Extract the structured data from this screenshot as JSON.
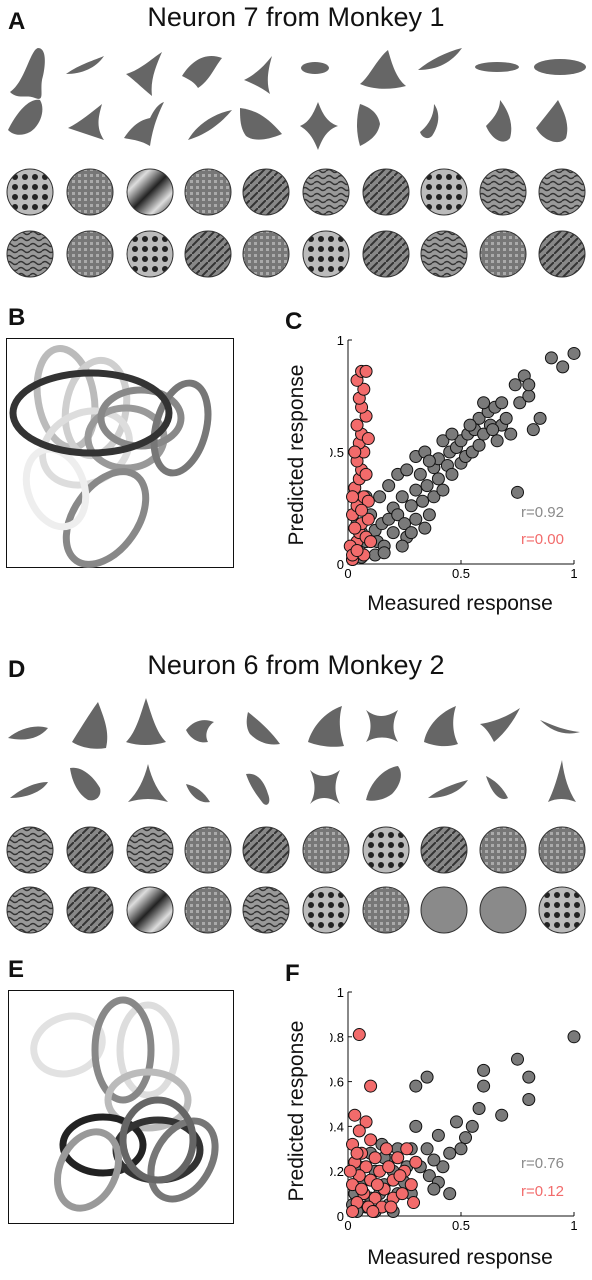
{
  "panels": {
    "A": "A",
    "B": "B",
    "C": "C",
    "D": "D",
    "E": "E",
    "F": "F"
  },
  "titles": {
    "top": "Neuron 7 from Monkey 1",
    "bottom": "Neuron 6 from Monkey 2"
  },
  "colors": {
    "shape": "#666666",
    "gray_series": "#7a7a7a",
    "red_series": "#f26b6b",
    "gray_text": "#8a8a8a",
    "red_text": "#f26b6b"
  },
  "chart_data": [
    {
      "type": "scatter",
      "panel": "C",
      "xlabel": "Measured response",
      "ylabel": "Predicted response",
      "xlim": [
        0,
        1
      ],
      "ylim": [
        0,
        1
      ],
      "xticks": [
        "0",
        "0.5",
        "1"
      ],
      "yticks": [
        "0",
        "0.5",
        "1"
      ],
      "series": [
        {
          "name": "r=0.92",
          "color": "#7a7a7a",
          "points": [
            [
              0.02,
              0.02
            ],
            [
              0.03,
              0.05
            ],
            [
              0.05,
              0.08
            ],
            [
              0.06,
              0.03
            ],
            [
              0.08,
              0.1
            ],
            [
              0.1,
              0.12
            ],
            [
              0.12,
              0.15
            ],
            [
              0.13,
              0.1
            ],
            [
              0.15,
              0.18
            ],
            [
              0.16,
              0.08
            ],
            [
              0.18,
              0.2
            ],
            [
              0.2,
              0.14
            ],
            [
              0.2,
              0.25
            ],
            [
              0.22,
              0.22
            ],
            [
              0.24,
              0.3
            ],
            [
              0.25,
              0.18
            ],
            [
              0.26,
              0.12
            ],
            [
              0.28,
              0.26
            ],
            [
              0.3,
              0.33
            ],
            [
              0.3,
              0.2
            ],
            [
              0.32,
              0.4
            ],
            [
              0.33,
              0.28
            ],
            [
              0.35,
              0.35
            ],
            [
              0.36,
              0.22
            ],
            [
              0.38,
              0.43
            ],
            [
              0.38,
              0.3
            ],
            [
              0.4,
              0.38
            ],
            [
              0.4,
              0.47
            ],
            [
              0.42,
              0.33
            ],
            [
              0.44,
              0.44
            ],
            [
              0.45,
              0.5
            ],
            [
              0.46,
              0.4
            ],
            [
              0.48,
              0.52
            ],
            [
              0.5,
              0.45
            ],
            [
              0.5,
              0.55
            ],
            [
              0.52,
              0.48
            ],
            [
              0.53,
              0.58
            ],
            [
              0.55,
              0.5
            ],
            [
              0.56,
              0.6
            ],
            [
              0.58,
              0.53
            ],
            [
              0.58,
              0.65
            ],
            [
              0.6,
              0.58
            ],
            [
              0.62,
              0.68
            ],
            [
              0.63,
              0.62
            ],
            [
              0.65,
              0.7
            ],
            [
              0.66,
              0.55
            ],
            [
              0.68,
              0.62
            ],
            [
              0.7,
              0.65
            ],
            [
              0.72,
              0.58
            ],
            [
              0.74,
              0.8
            ],
            [
              0.76,
              0.72
            ],
            [
              0.78,
              0.84
            ],
            [
              0.8,
              0.75
            ],
            [
              0.82,
              0.6
            ],
            [
              0.85,
              0.65
            ],
            [
              0.9,
              0.92
            ],
            [
              0.95,
              0.88
            ],
            [
              1.0,
              0.94
            ],
            [
              0.75,
              0.32
            ],
            [
              0.8,
              0.8
            ],
            [
              0.08,
              0.3
            ],
            [
              0.1,
              0.22
            ],
            [
              0.14,
              0.3
            ],
            [
              0.18,
              0.35
            ],
            [
              0.22,
              0.4
            ],
            [
              0.26,
              0.42
            ],
            [
              0.3,
              0.48
            ],
            [
              0.34,
              0.5
            ],
            [
              0.36,
              0.46
            ],
            [
              0.42,
              0.55
            ],
            [
              0.46,
              0.58
            ],
            [
              0.54,
              0.62
            ],
            [
              0.6,
              0.72
            ],
            [
              0.64,
              0.6
            ],
            [
              0.68,
              0.72
            ],
            [
              0.12,
              0.04
            ],
            [
              0.16,
              0.05
            ],
            [
              0.24,
              0.08
            ],
            [
              0.28,
              0.14
            ],
            [
              0.34,
              0.16
            ],
            [
              0.06,
              0.14
            ],
            [
              0.04,
              0.18
            ]
          ]
        },
        {
          "name": "r=0.00",
          "color": "#f26b6b",
          "points": [
            [
              0.02,
              0.02
            ],
            [
              0.03,
              0.06
            ],
            [
              0.04,
              0.1
            ],
            [
              0.05,
              0.14
            ],
            [
              0.06,
              0.18
            ],
            [
              0.02,
              0.22
            ],
            [
              0.04,
              0.26
            ],
            [
              0.07,
              0.3
            ],
            [
              0.03,
              0.34
            ],
            [
              0.05,
              0.38
            ],
            [
              0.06,
              0.42
            ],
            [
              0.04,
              0.46
            ],
            [
              0.07,
              0.5
            ],
            [
              0.05,
              0.54
            ],
            [
              0.06,
              0.58
            ],
            [
              0.04,
              0.62
            ],
            [
              0.08,
              0.66
            ],
            [
              0.06,
              0.7
            ],
            [
              0.05,
              0.74
            ],
            [
              0.07,
              0.78
            ],
            [
              0.04,
              0.82
            ],
            [
              0.06,
              0.86
            ],
            [
              0.08,
              0.86
            ],
            [
              0.09,
              0.2
            ],
            [
              0.01,
              0.08
            ],
            [
              0.08,
              0.12
            ],
            [
              0.03,
              0.16
            ],
            [
              0.09,
              0.28
            ],
            [
              0.02,
              0.3
            ],
            [
              0.08,
              0.4
            ],
            [
              0.03,
              0.5
            ],
            [
              0.09,
              0.56
            ],
            [
              0.02,
              0.04
            ],
            [
              0.07,
              0.04
            ],
            [
              0.1,
              0.1
            ],
            [
              0.04,
              0.06
            ],
            [
              0.06,
              0.24
            ]
          ]
        }
      ]
    },
    {
      "type": "scatter",
      "panel": "F",
      "xlabel": "Measured response",
      "ylabel": "Predicted response",
      "xlim": [
        0,
        1
      ],
      "ylim": [
        0,
        1
      ],
      "xticks": [
        "0",
        "0.5",
        "1"
      ],
      "yticks": [
        "0",
        "0.2",
        "0.4",
        "0.6",
        "0.8",
        "1"
      ],
      "series": [
        {
          "name": "r=0.76",
          "color": "#7a7a7a",
          "points": [
            [
              1.0,
              0.8
            ],
            [
              0.8,
              0.62
            ],
            [
              0.8,
              0.52
            ],
            [
              0.75,
              0.7
            ],
            [
              0.68,
              0.45
            ],
            [
              0.6,
              0.65
            ],
            [
              0.6,
              0.58
            ],
            [
              0.58,
              0.48
            ],
            [
              0.55,
              0.4
            ],
            [
              0.52,
              0.35
            ],
            [
              0.5,
              0.3
            ],
            [
              0.48,
              0.42
            ],
            [
              0.45,
              0.28
            ],
            [
              0.42,
              0.22
            ],
            [
              0.4,
              0.36
            ],
            [
              0.38,
              0.25
            ],
            [
              0.36,
              0.18
            ],
            [
              0.35,
              0.3
            ],
            [
              0.35,
              0.62
            ],
            [
              0.3,
              0.58
            ],
            [
              0.3,
              0.4
            ],
            [
              0.28,
              0.3
            ],
            [
              0.26,
              0.22
            ],
            [
              0.25,
              0.15
            ],
            [
              0.22,
              0.3
            ],
            [
              0.22,
              0.1
            ],
            [
              0.2,
              0.2
            ],
            [
              0.18,
              0.25
            ],
            [
              0.18,
              0.05
            ],
            [
              0.16,
              0.14
            ],
            [
              0.15,
              0.32
            ],
            [
              0.12,
              0.2
            ],
            [
              0.1,
              0.08
            ],
            [
              0.1,
              0.28
            ],
            [
              0.08,
              0.04
            ],
            [
              0.06,
              0.15
            ],
            [
              0.05,
              0.22
            ],
            [
              0.04,
              0.02
            ],
            [
              0.03,
              0.1
            ],
            [
              0.02,
              0.05
            ],
            [
              0.12,
              0.02
            ],
            [
              0.4,
              0.15
            ],
            [
              0.38,
              0.12
            ],
            [
              0.2,
              0.02
            ],
            [
              0.45,
              0.1
            ],
            [
              0.28,
              0.1
            ],
            [
              0.32,
              0.22
            ],
            [
              0.14,
              0.1
            ],
            [
              0.16,
              0.26
            ]
          ]
        },
        {
          "name": "r=0.12",
          "color": "#f26b6b",
          "points": [
            [
              0.05,
              0.81
            ],
            [
              0.1,
              0.58
            ],
            [
              0.03,
              0.45
            ],
            [
              0.08,
              0.42
            ],
            [
              0.05,
              0.38
            ],
            [
              0.02,
              0.32
            ],
            [
              0.1,
              0.34
            ],
            [
              0.06,
              0.28
            ],
            [
              0.12,
              0.26
            ],
            [
              0.03,
              0.24
            ],
            [
              0.08,
              0.22
            ],
            [
              0.14,
              0.2
            ],
            [
              0.05,
              0.18
            ],
            [
              0.1,
              0.16
            ],
            [
              0.02,
              0.14
            ],
            [
              0.16,
              0.12
            ],
            [
              0.07,
              0.1
            ],
            [
              0.12,
              0.08
            ],
            [
              0.04,
              0.06
            ],
            [
              0.09,
              0.04
            ],
            [
              0.02,
              0.02
            ],
            [
              0.18,
              0.22
            ],
            [
              0.2,
              0.16
            ],
            [
              0.22,
              0.26
            ],
            [
              0.25,
              0.2
            ],
            [
              0.28,
              0.14
            ],
            [
              0.3,
              0.24
            ],
            [
              0.15,
              0.04
            ],
            [
              0.2,
              0.08
            ],
            [
              0.26,
              0.3
            ],
            [
              0.01,
              0.2
            ],
            [
              0.04,
              0.28
            ],
            [
              0.06,
              0.12
            ],
            [
              0.11,
              0.02
            ],
            [
              0.17,
              0.3
            ],
            [
              0.24,
              0.1
            ],
            [
              0.13,
              0.14
            ],
            [
              0.19,
              0.04
            ],
            [
              0.23,
              0.18
            ],
            [
              0.29,
              0.06
            ]
          ]
        }
      ]
    }
  ]
}
